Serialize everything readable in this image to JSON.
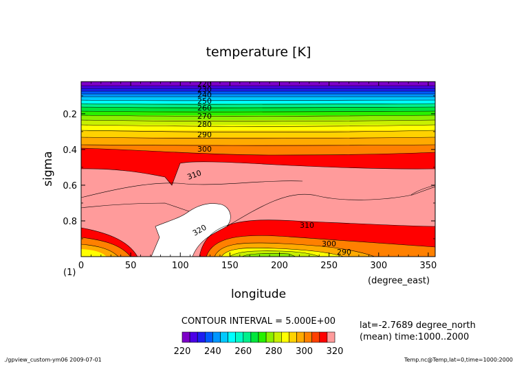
{
  "chart_data": {
    "type": "contour",
    "title": "temperature [K]",
    "xlabel": "longitude",
    "x_units": "(degree_east)",
    "ylabel": "sigma",
    "y_units": "(1)",
    "xlim": [
      0,
      357
    ],
    "ylim": [
      1.0,
      0.02
    ],
    "x_ticks": [
      0,
      50,
      100,
      150,
      200,
      250,
      300,
      350
    ],
    "y_ticks": [
      0.2,
      0.4,
      0.6,
      0.8
    ],
    "y_tick_labels": [
      "0.2",
      "0.4",
      "0.6",
      "0.8"
    ],
    "contour_interval_text": "CONTOUR INTERVAL = 5.000E+00",
    "contour_labels": [
      "220",
      "230",
      "240",
      "250",
      "260",
      "270",
      "280",
      "290",
      "300",
      "310",
      "320",
      "310",
      "300",
      "290"
    ],
    "colorbar": {
      "levels": [
        220,
        225,
        230,
        235,
        240,
        245,
        250,
        255,
        260,
        265,
        270,
        275,
        280,
        285,
        290,
        295,
        300,
        305,
        310,
        315,
        320
      ],
      "tick_labels": [
        "220",
        "240",
        "260",
        "280",
        "300",
        "320"
      ],
      "colors": [
        "#7d00c8",
        "#4b00e6",
        "#1e1ef0",
        "#005aff",
        "#0096ff",
        "#00c8ff",
        "#00ffff",
        "#00fac8",
        "#00f08c",
        "#00e63c",
        "#28f000",
        "#8cf000",
        "#c8f000",
        "#ffff00",
        "#ffd200",
        "#ffaa00",
        "#ff8000",
        "#ff4000",
        "#ff0000",
        "#ff9b9b"
      ]
    },
    "info_line1": "lat=-2.7689 degree_north",
    "info_line2": "(mean) time:1000..2000"
  },
  "footer": {
    "left": "./gpview_custom-ym06  2009-07-01",
    "right": "Temp.nc@Temp,lat=0,time=1000:2000"
  }
}
